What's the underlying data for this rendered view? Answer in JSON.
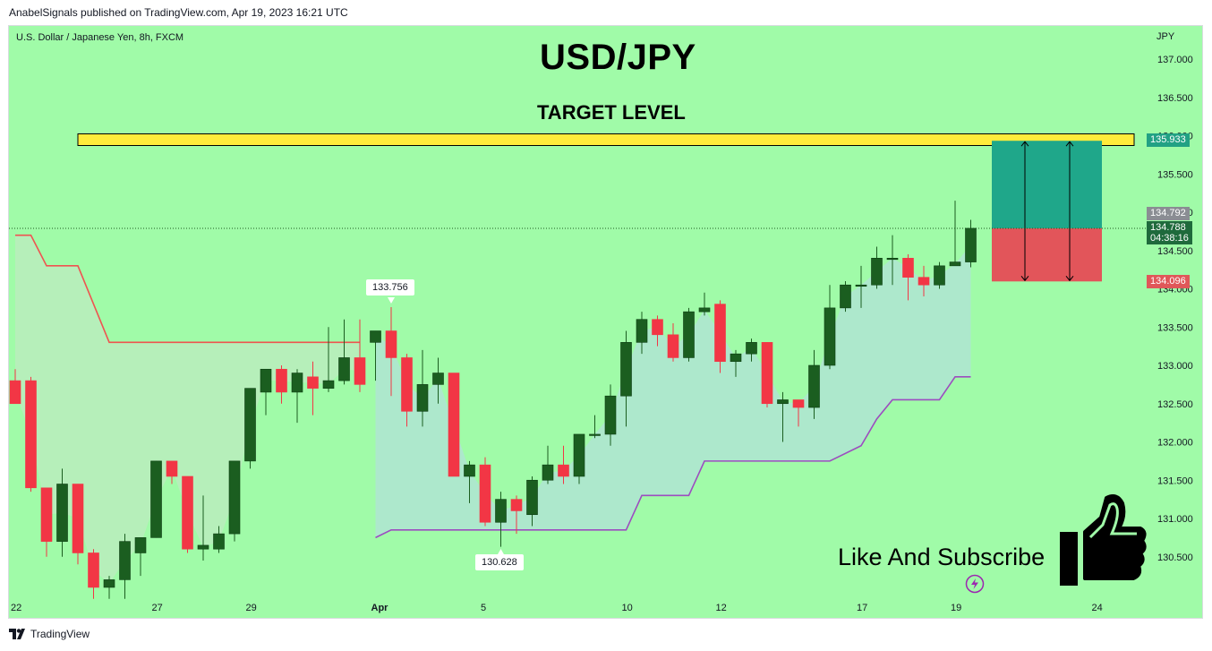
{
  "header": {
    "published_by": "AnabelSignals published on TradingView.com, Apr 19, 2023 16:21 UTC"
  },
  "chart_header": {
    "symbol_label": "U.S. Dollar / Japanese Yen, 8h, FXCM",
    "currency": "JPY"
  },
  "annotations": {
    "title": "USD/JPY",
    "target_label": "TARGET LEVEL",
    "like_subscribe": "Like And Subscribe",
    "high_callout": "133.756",
    "low_callout": "130.628"
  },
  "price_tags": {
    "target": "135.933",
    "last_high": "134.792",
    "current": "134.788",
    "countdown": "04:38:16",
    "stop": "134.096"
  },
  "footer": {
    "brand": "TradingView"
  },
  "colors": {
    "background": "#a0fba8",
    "bull": "#1b5e20",
    "bear": "#f23645",
    "target_band": "#ffeb3b",
    "profit_zone": "#1fa78a",
    "loss_zone": "#e2555a",
    "supertrend_down": "#ef5350",
    "supertrend_up": "#9c4dc0"
  },
  "chart_data": {
    "type": "candlestick",
    "symbol": "USD/JPY",
    "timeframe": "8h",
    "y_ticks": [
      137.0,
      136.5,
      136.0,
      135.5,
      135.0,
      134.5,
      134.0,
      133.5,
      133.0,
      132.5,
      132.0,
      131.5,
      131.0,
      130.5
    ],
    "y_tick_labels": [
      "137.000",
      "136.500",
      "136.000",
      "135.500",
      "135.000",
      "134.500",
      "134.000",
      "133.500",
      "133.000",
      "132.500",
      "132.000",
      "131.500",
      "131.000",
      "130.500"
    ],
    "ylim": [
      130.04,
      137.68
    ],
    "x_labels": [
      {
        "label": "22",
        "index": 0
      },
      {
        "label": "27",
        "index": 9
      },
      {
        "label": "29",
        "index": 15
      },
      {
        "label": "Apr",
        "index": 23
      },
      {
        "label": "5",
        "index": 30
      },
      {
        "label": "10",
        "index": 39
      },
      {
        "label": "12",
        "index": 45
      },
      {
        "label": "17",
        "index": 54
      },
      {
        "label": "19",
        "index": 60
      },
      {
        "label": "24",
        "index": 69
      }
    ],
    "candles": [
      [
        132.8,
        132.95,
        132.5,
        132.5
      ],
      [
        132.8,
        132.85,
        131.35,
        131.4
      ],
      [
        131.4,
        131.4,
        130.5,
        130.7
      ],
      [
        130.7,
        131.65,
        130.5,
        131.45
      ],
      [
        131.45,
        131.45,
        130.4,
        130.55
      ],
      [
        130.55,
        130.6,
        129.95,
        130.1
      ],
      [
        130.1,
        130.25,
        129.95,
        130.2
      ],
      [
        130.2,
        130.8,
        129.95,
        130.7
      ],
      [
        130.55,
        130.75,
        130.25,
        130.75
      ],
      [
        130.75,
        131.75,
        130.75,
        131.75
      ],
      [
        131.75,
        131.75,
        131.45,
        131.55
      ],
      [
        131.55,
        131.55,
        130.55,
        130.6
      ],
      [
        130.6,
        131.3,
        130.45,
        130.65
      ],
      [
        130.6,
        130.9,
        130.55,
        130.8
      ],
      [
        130.8,
        131.75,
        130.7,
        131.75
      ],
      [
        131.75,
        132.7,
        131.65,
        132.7
      ],
      [
        132.65,
        132.95,
        132.35,
        132.95
      ],
      [
        132.95,
        133.0,
        132.5,
        132.65
      ],
      [
        132.65,
        132.95,
        132.25,
        132.9
      ],
      [
        132.85,
        133.05,
        132.35,
        132.7
      ],
      [
        132.7,
        133.5,
        132.65,
        132.8
      ],
      [
        132.8,
        133.6,
        132.75,
        133.1
      ],
      [
        133.1,
        133.6,
        132.65,
        132.75
      ],
      [
        133.3,
        133.45,
        132.8,
        133.45
      ],
      [
        133.45,
        133.76,
        132.6,
        133.1
      ],
      [
        133.1,
        133.15,
        132.2,
        132.4
      ],
      [
        132.4,
        133.2,
        132.2,
        132.75
      ],
      [
        132.75,
        133.1,
        132.5,
        132.9
      ],
      [
        132.9,
        132.9,
        131.55,
        131.55
      ],
      [
        131.55,
        131.75,
        131.2,
        131.7
      ],
      [
        131.7,
        131.8,
        130.9,
        130.95
      ],
      [
        130.95,
        131.35,
        130.63,
        131.25
      ],
      [
        131.25,
        131.3,
        130.8,
        131.1
      ],
      [
        131.05,
        131.55,
        130.9,
        131.5
      ],
      [
        131.5,
        131.95,
        131.45,
        131.7
      ],
      [
        131.7,
        131.95,
        131.45,
        131.55
      ],
      [
        131.55,
        132.1,
        131.45,
        132.1
      ],
      [
        132.1,
        132.35,
        132.05,
        132.1
      ],
      [
        132.1,
        132.75,
        131.95,
        132.6
      ],
      [
        132.6,
        133.45,
        132.2,
        133.3
      ],
      [
        133.3,
        133.7,
        133.15,
        133.6
      ],
      [
        133.6,
        133.65,
        133.25,
        133.4
      ],
      [
        133.4,
        133.55,
        133.05,
        133.1
      ],
      [
        133.1,
        133.75,
        133.05,
        133.7
      ],
      [
        133.7,
        133.95,
        133.65,
        133.75
      ],
      [
        133.8,
        133.85,
        132.9,
        133.05
      ],
      [
        133.05,
        133.2,
        132.85,
        133.15
      ],
      [
        133.15,
        133.35,
        133.05,
        133.3
      ],
      [
        133.3,
        133.3,
        132.45,
        132.5
      ],
      [
        132.5,
        132.65,
        132.0,
        132.55
      ],
      [
        132.55,
        132.55,
        132.2,
        132.45
      ],
      [
        132.45,
        133.2,
        132.3,
        133.0
      ],
      [
        133.0,
        134.05,
        132.95,
        133.75
      ],
      [
        133.75,
        134.1,
        133.7,
        134.05
      ],
      [
        134.05,
        134.3,
        133.75,
        134.05
      ],
      [
        134.05,
        134.55,
        134.0,
        134.4
      ],
      [
        134.4,
        134.7,
        134.05,
        134.4
      ],
      [
        134.4,
        134.45,
        133.85,
        134.15
      ],
      [
        134.15,
        134.3,
        133.9,
        134.05
      ],
      [
        134.05,
        134.35,
        134.0,
        134.3
      ],
      [
        134.3,
        135.15,
        134.3,
        134.35
      ],
      [
        134.35,
        134.9,
        134.28,
        134.79
      ]
    ],
    "supertrend_down": [
      {
        "i": 0,
        "v": 134.7
      },
      {
        "i": 1,
        "v": 134.7
      },
      {
        "i": 2,
        "v": 134.3
      },
      {
        "i": 4,
        "v": 134.3
      },
      {
        "i": 5,
        "v": 133.8
      },
      {
        "i": 6,
        "v": 133.3
      },
      {
        "i": 22,
        "v": 133.3
      }
    ],
    "supertrend_up": [
      {
        "i": 23,
        "v": 130.75
      },
      {
        "i": 24,
        "v": 130.85
      },
      {
        "i": 39,
        "v": 130.85
      },
      {
        "i": 40,
        "v": 131.3
      },
      {
        "i": 43,
        "v": 131.3
      },
      {
        "i": 44,
        "v": 131.75
      },
      {
        "i": 52,
        "v": 131.75
      },
      {
        "i": 54,
        "v": 131.95
      },
      {
        "i": 55,
        "v": 132.3
      },
      {
        "i": 56,
        "v": 132.55
      },
      {
        "i": 59,
        "v": 132.55
      },
      {
        "i": 60,
        "v": 132.85
      },
      {
        "i": 61,
        "v": 132.85
      }
    ],
    "target_level": 136.0,
    "position": {
      "entry": 134.79,
      "take_profit": 135.933,
      "stop_loss": 134.096,
      "start_index": 62,
      "end_index": 68
    }
  }
}
